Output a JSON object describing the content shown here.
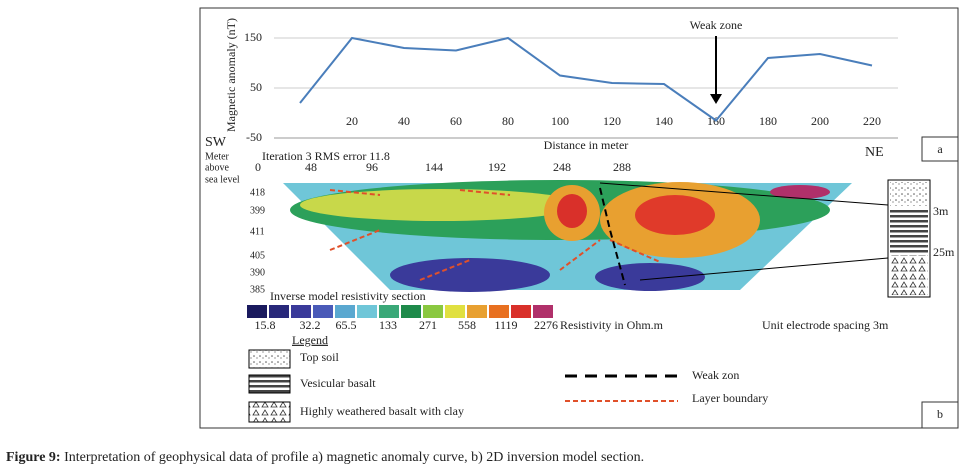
{
  "chart_data": {
    "type": "line",
    "y_label": "Magnetic anomaly (nT)",
    "x_label": "Distance in meter",
    "x": [
      0,
      20,
      40,
      60,
      80,
      100,
      120,
      140,
      160,
      180,
      200,
      220
    ],
    "values": [
      20,
      150,
      130,
      125,
      150,
      75,
      60,
      58,
      -15,
      110,
      118,
      95
    ],
    "color": "#4a7ebb",
    "xlim": [
      -10,
      230
    ],
    "ylim": [
      -50,
      200
    ],
    "xticks": [
      20,
      40,
      60,
      80,
      100,
      120,
      140,
      160,
      180,
      200,
      220
    ],
    "yticks": [
      -50,
      50,
      150
    ],
    "grid": true,
    "annotation": {
      "text": "Weak zone",
      "x": 160
    },
    "panel_label": "a"
  },
  "section": {
    "sw": "SW",
    "ne": "NE",
    "elevation_title": [
      "Meter",
      "above",
      "sea level"
    ],
    "iteration": "Iteration 3 RMS error 11.8",
    "distances": [
      "0",
      "48",
      "96",
      "144",
      "192",
      "248",
      "288"
    ],
    "elevations": [
      "418",
      "399",
      "411",
      "405",
      "390",
      "385"
    ],
    "thickness": [
      "3m",
      "25m"
    ],
    "scale_title": "Inverse model resistivity section",
    "scale_labels": [
      "15.8",
      "32.2",
      "65.5",
      "133",
      "271",
      "558",
      "1119",
      "2276"
    ],
    "scale_unit": "Resistivity in Ohm.m",
    "spacing": "Unit electrode spacing 3m",
    "panel_label": "b"
  },
  "legend": {
    "title": "Legend",
    "items": [
      "Top soil",
      "Vesicular basalt",
      "Highly weathered basalt with clay"
    ],
    "lines": [
      "Weak zon",
      "Layer boundary"
    ]
  },
  "caption": {
    "label": "Figure 9:",
    "text": " Interpretation of geophysical data of profile a) magnetic anomaly curve, b) 2D inversion model section."
  }
}
